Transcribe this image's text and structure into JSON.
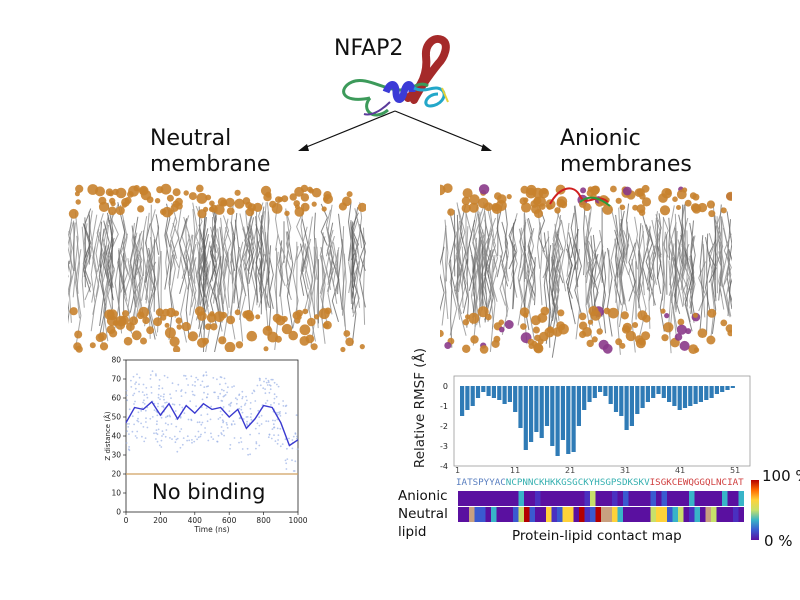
{
  "top": {
    "title": "NFAP2"
  },
  "left_panel": {
    "title_line1": "Neutral",
    "title_line2": "membrane",
    "plot": {
      "ylabel": "Z distance (Å)",
      "xlabel": "Time (ns)",
      "yticks": [
        "0",
        "10",
        "20",
        "30",
        "40",
        "50",
        "60",
        "70",
        "80"
      ],
      "xticks": [
        "0",
        "200",
        "400",
        "600",
        "800",
        "1000"
      ],
      "annotation": "No binding"
    }
  },
  "right_panel": {
    "title_line1": "Anionic",
    "title_line2": "membranes",
    "rmsf": {
      "ylabel": "Relative RMSF (Å)",
      "yticks": [
        "0",
        "-1",
        "-2",
        "-3",
        "-4"
      ],
      "xticks": [
        "1",
        "11",
        "21",
        "31",
        "41",
        "51"
      ]
    },
    "sequence": [
      {
        "text": "IATSPYYAC",
        "color": "#5a7fc0"
      },
      {
        "text": "NCPNNCKHKKGSGCKYHSGPSDKSKV",
        "color": "#35b0b0"
      },
      {
        "text": "ISGKCEWQGGQLNCIAT",
        "color": "#d04040"
      }
    ],
    "row_labels": [
      "Anionic",
      "Neutral",
      "lipid"
    ],
    "contact_map_label": "Protein-lipid contact map",
    "colorbar_max": "100 %",
    "colorbar_min": "0 %"
  },
  "chart_data": [
    {
      "type": "line",
      "xlabel": "Time (ns)",
      "ylabel": "Z distance (Å)",
      "xlim": [
        0,
        1000
      ],
      "ylim": [
        0,
        80
      ],
      "annotation": "No binding",
      "series": [
        {
          "x": [
            0,
            50,
            100,
            150,
            200,
            250,
            300,
            350,
            400,
            450,
            500,
            550,
            600,
            650,
            700,
            750,
            800,
            850,
            900,
            950,
            1000
          ],
          "y": [
            47,
            55,
            54,
            58,
            51,
            57,
            49,
            56,
            52,
            57,
            54,
            55,
            50,
            54,
            44,
            49,
            56,
            55,
            47,
            35,
            38
          ]
        },
        {
          "x": [
            0,
            1000
          ],
          "y": [
            20,
            20
          ]
        }
      ]
    },
    {
      "type": "bar",
      "ylabel": "Relative RMSF (Å)",
      "ylim": [
        -4,
        0.5
      ],
      "categories": [
        "1",
        "2",
        "3",
        "4",
        "5",
        "6",
        "7",
        "8",
        "9",
        "10",
        "11",
        "12",
        "13",
        "14",
        "15",
        "16",
        "17",
        "18",
        "19",
        "20",
        "21",
        "22",
        "23",
        "24",
        "25",
        "26",
        "27",
        "28",
        "29",
        "30",
        "31",
        "32",
        "33",
        "34",
        "35",
        "36",
        "37",
        "38",
        "39",
        "40",
        "41",
        "42",
        "43",
        "44",
        "45",
        "46",
        "47",
        "48",
        "49",
        "50",
        "51",
        "52"
      ],
      "values": [
        -1.5,
        -1.2,
        -1.0,
        -0.6,
        -0.3,
        -0.5,
        -0.6,
        -0.7,
        -0.9,
        -0.8,
        -1.3,
        -2.1,
        -3.2,
        -2.8,
        -2.3,
        -2.6,
        -2.0,
        -3.0,
        -3.5,
        -2.7,
        -3.4,
        -3.3,
        -2.0,
        -1.2,
        -0.8,
        -0.6,
        -0.3,
        -0.5,
        -0.9,
        -1.3,
        -1.5,
        -2.2,
        -2.0,
        -1.4,
        -1.1,
        -0.8,
        -0.6,
        -0.4,
        -0.6,
        -0.8,
        -1.0,
        -1.2,
        -1.1,
        -1.0,
        -0.9,
        -0.8,
        -0.7,
        -0.6,
        -0.4,
        -0.3,
        -0.2,
        -0.1
      ]
    }
  ],
  "colors": {
    "headgroup": "#c8822e",
    "tails": "#8a8a8a",
    "anionic_headgroup": "#8a3a8a",
    "bar": "#2f7bb6",
    "line_main": "#3a3ad0",
    "line_zero": "#d0a060"
  }
}
